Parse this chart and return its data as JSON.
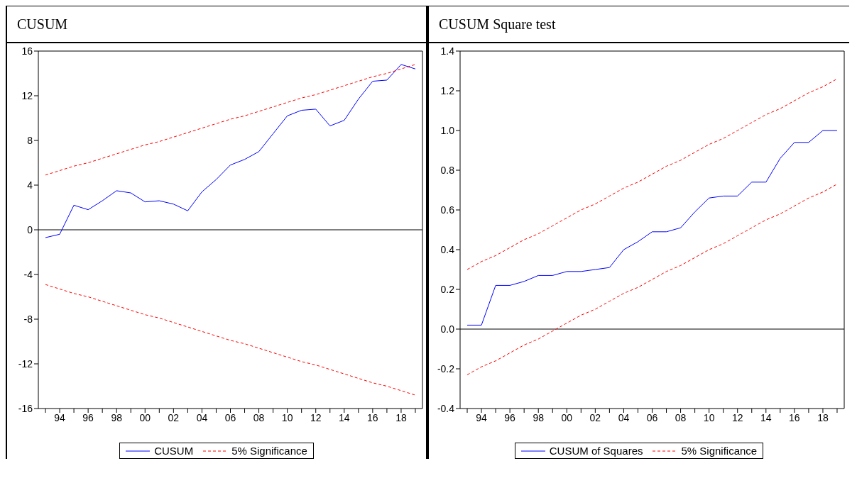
{
  "chart_data": [
    {
      "type": "line",
      "title": "CUSUM",
      "x": [
        1993,
        1994,
        1995,
        1996,
        1997,
        1998,
        1999,
        2000,
        2001,
        2002,
        2003,
        2004,
        2005,
        2006,
        2007,
        2008,
        2009,
        2010,
        2011,
        2012,
        2013,
        2014,
        2015,
        2016,
        2017,
        2018,
        2019
      ],
      "xlim": [
        1992.5,
        2019.5
      ],
      "xticks": [
        {
          "value": 1993,
          "label": null
        },
        {
          "value": 1994,
          "label": "94"
        },
        {
          "value": 1995,
          "label": null
        },
        {
          "value": 1996,
          "label": "96"
        },
        {
          "value": 1997,
          "label": null
        },
        {
          "value": 1998,
          "label": "98"
        },
        {
          "value": 1999,
          "label": null
        },
        {
          "value": 2000,
          "label": "00"
        },
        {
          "value": 2001,
          "label": null
        },
        {
          "value": 2002,
          "label": "02"
        },
        {
          "value": 2003,
          "label": null
        },
        {
          "value": 2004,
          "label": "04"
        },
        {
          "value": 2005,
          "label": null
        },
        {
          "value": 2006,
          "label": "06"
        },
        {
          "value": 2007,
          "label": null
        },
        {
          "value": 2008,
          "label": "08"
        },
        {
          "value": 2009,
          "label": null
        },
        {
          "value": 2010,
          "label": "10"
        },
        {
          "value": 2011,
          "label": null
        },
        {
          "value": 2012,
          "label": "12"
        },
        {
          "value": 2013,
          "label": null
        },
        {
          "value": 2014,
          "label": "14"
        },
        {
          "value": 2015,
          "label": null
        },
        {
          "value": 2016,
          "label": "16"
        },
        {
          "value": 2017,
          "label": null
        },
        {
          "value": 2018,
          "label": "18"
        },
        {
          "value": 2019,
          "label": null
        }
      ],
      "ylim": [
        -16,
        16
      ],
      "yticks": [
        -16,
        -12,
        -8,
        -4,
        0,
        4,
        8,
        12,
        16
      ],
      "legend": "bottom",
      "marker": "none",
      "line_style": "solid",
      "ref_lines": [
        {
          "axis": "y",
          "value": 0,
          "color": "#000000"
        }
      ],
      "series": [
        {
          "name": "CUSUM",
          "color": "#0000ff",
          "values": [
            -0.7,
            -0.4,
            2.2,
            1.8,
            2.6,
            3.5,
            3.3,
            2.5,
            2.6,
            2.3,
            1.7,
            3.4,
            4.5,
            5.8,
            6.3,
            7.0,
            8.6,
            10.2,
            10.7,
            10.8,
            9.3,
            9.8,
            11.7,
            13.3,
            13.4,
            14.8,
            14.4
          ]
        },
        {
          "name": "5% Significance",
          "color": "#ff0000",
          "line_style": "dashed",
          "values": [
            4.9,
            5.3,
            5.7,
            6.0,
            6.4,
            6.8,
            7.2,
            7.6,
            7.9,
            8.3,
            8.7,
            9.1,
            9.5,
            9.9,
            10.2,
            10.6,
            11.0,
            11.4,
            11.8,
            12.1,
            12.5,
            12.9,
            13.3,
            13.7,
            14.0,
            14.4,
            14.8
          ]
        },
        {
          "color": "#ff0000",
          "line_style": "dashed",
          "values": [
            -4.9,
            -5.3,
            -5.7,
            -6.0,
            -6.4,
            -6.8,
            -7.2,
            -7.6,
            -7.9,
            -8.3,
            -8.7,
            -9.1,
            -9.5,
            -9.9,
            -10.2,
            -10.6,
            -11.0,
            -11.4,
            -11.8,
            -12.1,
            -12.5,
            -12.9,
            -13.3,
            -13.7,
            -14.0,
            -14.4,
            -14.8
          ]
        }
      ]
    },
    {
      "type": "line",
      "title": "CUSUM Square test",
      "x": [
        1993,
        1994,
        1995,
        1996,
        1997,
        1998,
        1999,
        2000,
        2001,
        2002,
        2003,
        2004,
        2005,
        2006,
        2007,
        2008,
        2009,
        2010,
        2011,
        2012,
        2013,
        2014,
        2015,
        2016,
        2017,
        2018,
        2019
      ],
      "xlim": [
        1992.5,
        2019.5
      ],
      "xticks": [
        {
          "value": 1993,
          "label": null
        },
        {
          "value": 1994,
          "label": "94"
        },
        {
          "value": 1995,
          "label": null
        },
        {
          "value": 1996,
          "label": "96"
        },
        {
          "value": 1997,
          "label": null
        },
        {
          "value": 1998,
          "label": "98"
        },
        {
          "value": 1999,
          "label": null
        },
        {
          "value": 2000,
          "label": "00"
        },
        {
          "value": 2001,
          "label": null
        },
        {
          "value": 2002,
          "label": "02"
        },
        {
          "value": 2003,
          "label": null
        },
        {
          "value": 2004,
          "label": "04"
        },
        {
          "value": 2005,
          "label": null
        },
        {
          "value": 2006,
          "label": "06"
        },
        {
          "value": 2007,
          "label": null
        },
        {
          "value": 2008,
          "label": "08"
        },
        {
          "value": 2009,
          "label": null
        },
        {
          "value": 2010,
          "label": "10"
        },
        {
          "value": 2011,
          "label": null
        },
        {
          "value": 2012,
          "label": "12"
        },
        {
          "value": 2013,
          "label": null
        },
        {
          "value": 2014,
          "label": "14"
        },
        {
          "value": 2015,
          "label": null
        },
        {
          "value": 2016,
          "label": "16"
        },
        {
          "value": 2017,
          "label": null
        },
        {
          "value": 2018,
          "label": "18"
        },
        {
          "value": 2019,
          "label": null
        }
      ],
      "ylim": [
        -0.4,
        1.4
      ],
      "yticks": [
        {
          "value": -0.4,
          "label": "-0.4"
        },
        {
          "value": -0.2,
          "label": "-0.2"
        },
        {
          "value": 0,
          "label": "0.0"
        },
        {
          "value": 0.2,
          "label": "0.2"
        },
        {
          "value": 0.4,
          "label": "0.4"
        },
        {
          "value": 0.6,
          "label": "0.6"
        },
        {
          "value": 0.8,
          "label": "0.8"
        },
        {
          "value": 1.0,
          "label": "1.0"
        },
        {
          "value": 1.2,
          "label": "1.2"
        },
        {
          "value": 1.4,
          "label": "1.4"
        }
      ],
      "legend": "bottom",
      "marker": "none",
      "line_style": "solid",
      "ref_lines": [
        {
          "axis": "y",
          "value": 0,
          "color": "#000000"
        }
      ],
      "series": [
        {
          "name": "CUSUM of Squares",
          "color": "#0000ff",
          "values": [
            0.02,
            0.02,
            0.22,
            0.22,
            0.24,
            0.27,
            0.27,
            0.29,
            0.29,
            0.3,
            0.31,
            0.4,
            0.44,
            0.49,
            0.49,
            0.51,
            0.59,
            0.66,
            0.67,
            0.67,
            0.74,
            0.74,
            0.86,
            0.94,
            0.94,
            1.0,
            1.0
          ]
        },
        {
          "name": "5% Significance",
          "color": "#ff0000",
          "line_style": "dashed",
          "values": [
            0.3,
            0.34,
            0.37,
            0.41,
            0.45,
            0.48,
            0.52,
            0.56,
            0.6,
            0.63,
            0.67,
            0.71,
            0.74,
            0.78,
            0.82,
            0.85,
            0.89,
            0.93,
            0.96,
            1.0,
            1.04,
            1.08,
            1.11,
            1.15,
            1.19,
            1.22,
            1.26
          ]
        },
        {
          "color": "#ff0000",
          "line_style": "dashed",
          "values": [
            -0.23,
            -0.19,
            -0.16,
            -0.12,
            -0.08,
            -0.05,
            -0.01,
            0.03,
            0.07,
            0.1,
            0.14,
            0.18,
            0.21,
            0.25,
            0.29,
            0.32,
            0.36,
            0.4,
            0.43,
            0.47,
            0.51,
            0.55,
            0.58,
            0.62,
            0.66,
            0.69,
            0.73
          ]
        }
      ]
    }
  ]
}
